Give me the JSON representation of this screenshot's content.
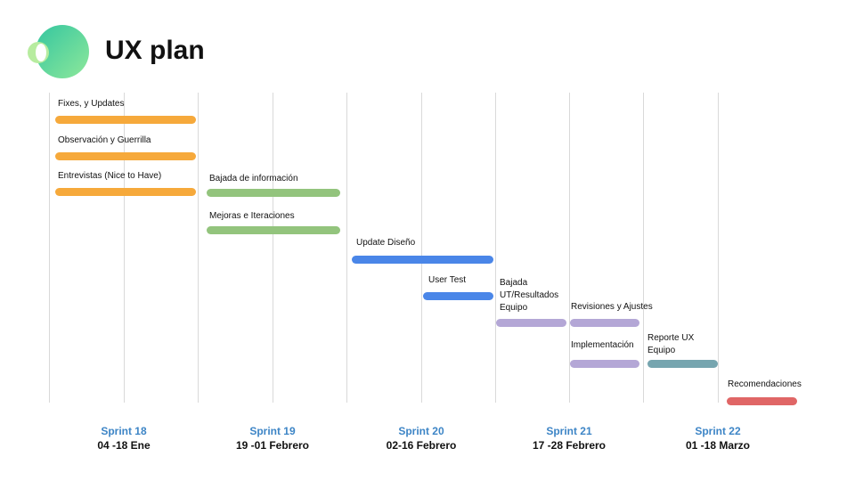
{
  "title": "UX plan",
  "colors": {
    "orange": "#f6a93b",
    "green": "#93c47d",
    "blue": "#4a86e8",
    "purple": "#b4a7d6",
    "teal": "#76a5af",
    "red": "#e06666",
    "sprint_name": "#3d85c6"
  },
  "tasks": [
    {
      "label": "Fixes, y Updates",
      "color": "orange"
    },
    {
      "label": "Observación y Guerrilla",
      "color": "orange"
    },
    {
      "label": "Entrevistas (Nice to Have)",
      "color": "orange"
    },
    {
      "label": "Bajada de información",
      "color": "green"
    },
    {
      "label": "Mejoras e Iteraciones",
      "color": "green"
    },
    {
      "label": "Update Diseño",
      "color": "blue"
    },
    {
      "label": "User Test",
      "color": "blue"
    },
    {
      "label": "Bajada\nUT/Resultados\nEquipo",
      "color": "purple"
    },
    {
      "label": "Revisiones y Ajustes",
      "color": "purple"
    },
    {
      "label": "Implementación",
      "color": "purple"
    },
    {
      "label": "Reporte UX\nEquipo",
      "color": "teal"
    },
    {
      "label": "Recomendaciones",
      "color": "red"
    }
  ],
  "sprints": [
    {
      "name": "Sprint 18",
      "dates": "04 -18 Ene"
    },
    {
      "name": "Sprint 19",
      "dates": "19 -01 Febrero"
    },
    {
      "name": "Sprint 20",
      "dates": "02-16 Febrero"
    },
    {
      "name": "Sprint 21",
      "dates": "17 -28 Febrero"
    },
    {
      "name": "Sprint 22",
      "dates": "01 -18 Marzo"
    }
  ]
}
